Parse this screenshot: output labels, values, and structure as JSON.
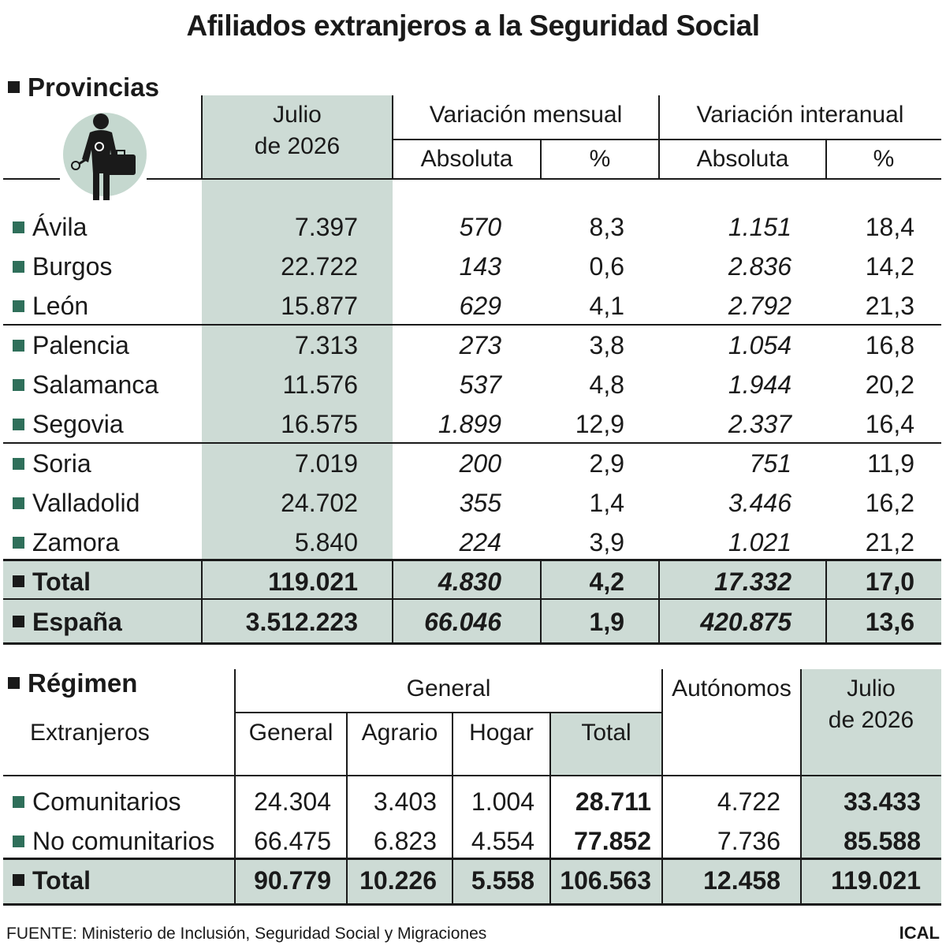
{
  "title": "Afiliados extranjeros a la Seguridad Social",
  "colors": {
    "band": "#cddbd5",
    "bullet": "#2f6f5a",
    "icon_circle": "#c5d8cf",
    "text": "#1a1a1a"
  },
  "provincias": {
    "section_title": "Provincias",
    "icon": "worker-with-briefcase-icon",
    "headers": {
      "julio": "Julio",
      "julio_year": "de 2026",
      "var_mensual": "Variación mensual",
      "var_interanual": "Variación interanual",
      "absoluta": "Absoluta",
      "pct": "%"
    },
    "rows": [
      {
        "name": "Ávila",
        "julio": "7.397",
        "m_abs": "570",
        "m_pct": "8,3",
        "i_abs": "1.151",
        "i_pct": "18,4"
      },
      {
        "name": "Burgos",
        "julio": "22.722",
        "m_abs": "143",
        "m_pct": "0,6",
        "i_abs": "2.836",
        "i_pct": "14,2"
      },
      {
        "name": "León",
        "julio": "15.877",
        "m_abs": "629",
        "m_pct": "4,1",
        "i_abs": "2.792",
        "i_pct": "21,3"
      },
      {
        "name": "Palencia",
        "julio": "7.313",
        "m_abs": "273",
        "m_pct": "3,8",
        "i_abs": "1.054",
        "i_pct": "16,8"
      },
      {
        "name": "Salamanca",
        "julio": "11.576",
        "m_abs": "537",
        "m_pct": "4,8",
        "i_abs": "1.944",
        "i_pct": "20,2"
      },
      {
        "name": "Segovia",
        "julio": "16.575",
        "m_abs": "1.899",
        "m_pct": "12,9",
        "i_abs": "2.337",
        "i_pct": "16,4"
      },
      {
        "name": "Soria",
        "julio": "7.019",
        "m_abs": "200",
        "m_pct": "2,9",
        "i_abs": "751",
        "i_pct": "11,9"
      },
      {
        "name": "Valladolid",
        "julio": "24.702",
        "m_abs": "355",
        "m_pct": "1,4",
        "i_abs": "3.446",
        "i_pct": "16,2"
      },
      {
        "name": "Zamora",
        "julio": "5.840",
        "m_abs": "224",
        "m_pct": "3,9",
        "i_abs": "1.021",
        "i_pct": "21,2"
      }
    ],
    "total": {
      "name": "Total",
      "julio": "119.021",
      "m_abs": "4.830",
      "m_pct": "4,2",
      "i_abs": "17.332",
      "i_pct": "17,0"
    },
    "espana": {
      "name": "España",
      "julio": "3.512.223",
      "m_abs": "66.046",
      "m_pct": "1,9",
      "i_abs": "420.875",
      "i_pct": "13,6"
    }
  },
  "regimen": {
    "section_title": "Régimen",
    "row_label_header": "Extranjeros",
    "headers": {
      "general_group": "General",
      "general": "General",
      "agrario": "Agrario",
      "hogar": "Hogar",
      "total": "Total",
      "autonomos": "Autónomos",
      "julio": "Julio",
      "julio_year": "de 2026"
    },
    "rows": [
      {
        "name": "Comunitarios",
        "general": "24.304",
        "agrario": "3.403",
        "hogar": "1.004",
        "total": "28.711",
        "autonomos": "4.722",
        "julio": "33.433"
      },
      {
        "name": "No comunitarios",
        "general": "66.475",
        "agrario": "6.823",
        "hogar": "4.554",
        "total": "77.852",
        "autonomos": "7.736",
        "julio": "85.588"
      }
    ],
    "total": {
      "name": "Total",
      "general": "90.779",
      "agrario": "10.226",
      "hogar": "5.558",
      "total": "106.563",
      "autonomos": "12.458",
      "julio": "119.021"
    }
  },
  "source": "FUENTE: Ministerio de Inclusión, Seguridad Social y Migraciones",
  "agency": "ICAL"
}
